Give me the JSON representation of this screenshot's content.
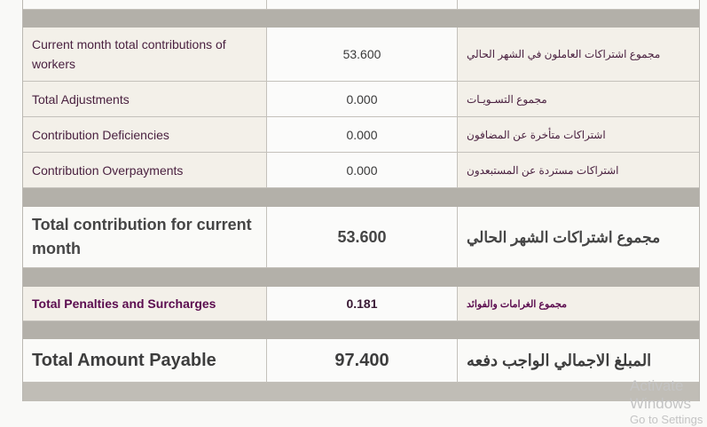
{
  "rows": [
    {
      "en": "Current month total contributions of workers",
      "value": "53.600",
      "ar": "مجموع اشتراكات العاملون في الشهر الحالي"
    },
    {
      "en": "Total Adjustments",
      "value": "0.000",
      "ar": "مجموع التسـويـات"
    },
    {
      "en": "Contribution Deficiencies",
      "value": "0.000",
      "ar": "اشتراكات متأخرة عن المضافون"
    },
    {
      "en": "Contribution Overpayments",
      "value": "0.000",
      "ar": "اشتراكات مستردة عن المستبعدون"
    }
  ],
  "total_month": {
    "en": "Total contribution for current month",
    "value": "53.600",
    "ar": "مجموع اشتراكات الشهر الحالي"
  },
  "penalties": {
    "en": "Total Penalties and Surcharges",
    "value": "0.181",
    "ar": "مجموع الغرامات والفوائد"
  },
  "payable": {
    "en": "Total Amount Payable",
    "value": "97.400",
    "ar": "المبلغ الاجمالي الواجب دفعه"
  },
  "watermark": {
    "line1": "Activate Windows",
    "line2": "Go to Settings"
  },
  "colors": {
    "separator": "#b3b0a9",
    "row_bg": "#f3f0e9",
    "label": "#4a2140",
    "penalty": "#5b0c4f"
  }
}
